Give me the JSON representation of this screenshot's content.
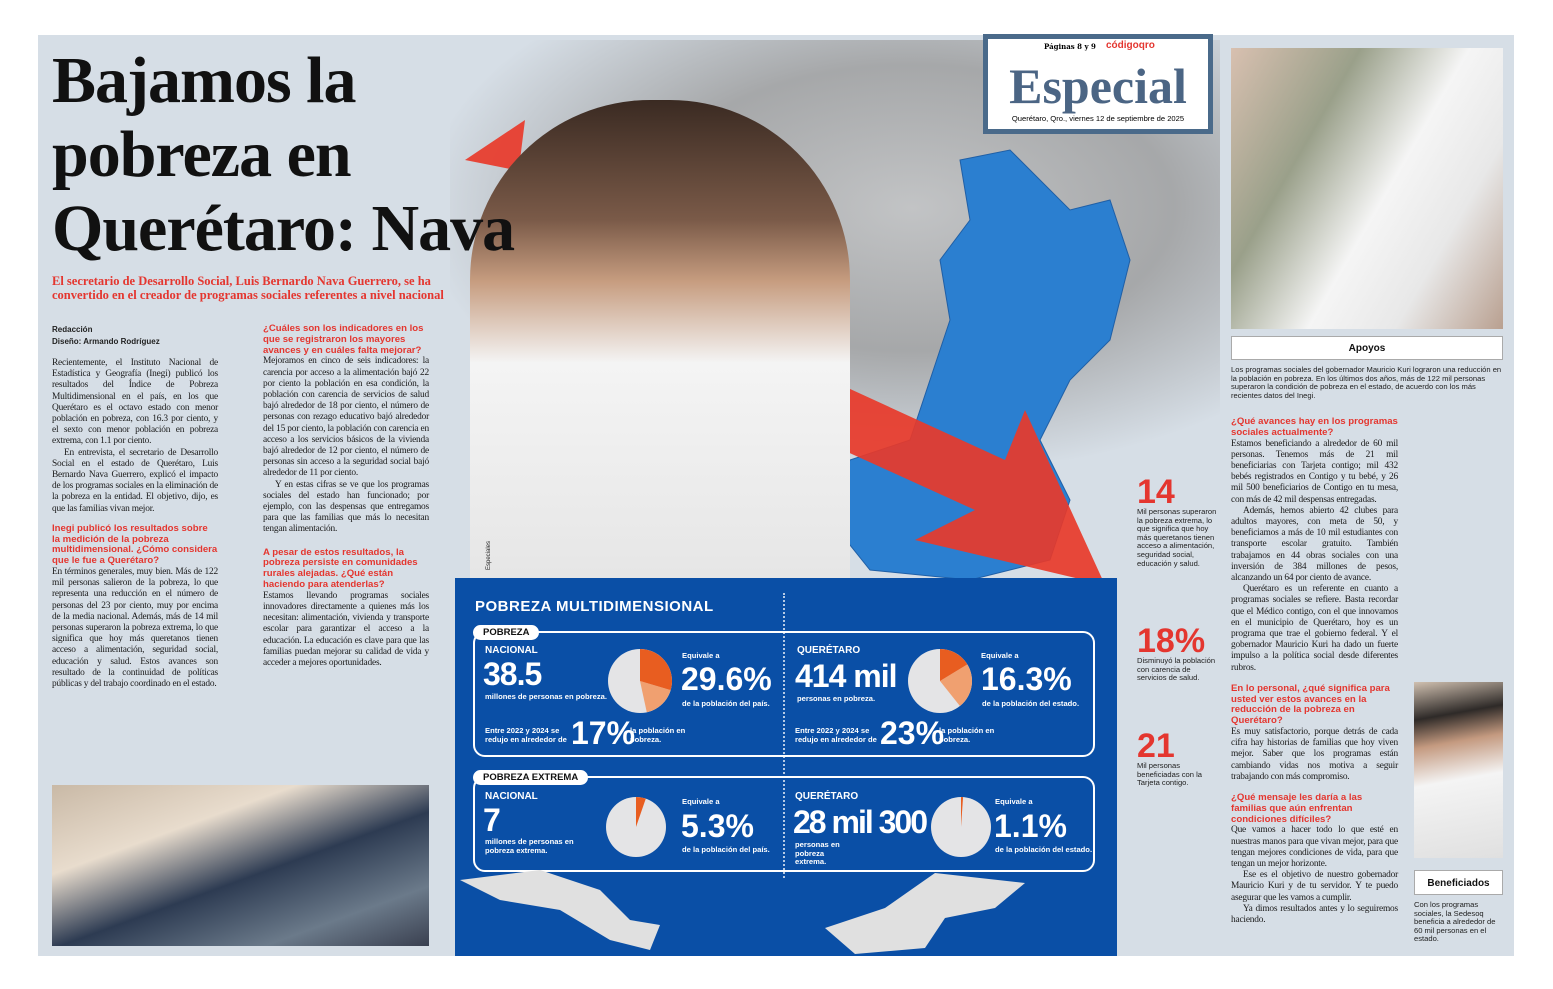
{
  "header": {
    "pages": "Páginas 8 y 9",
    "brand": "códigoqro",
    "section": "Especial",
    "dateline": "Querétaro, Qro., viernes 12 de septiembre de 2025"
  },
  "article": {
    "headline": "Bajamos la pobreza en Querétaro: Nava",
    "deck": "El secretario de Desarrollo Social, Luis Bernardo Nava Guerrero, se ha convertido en el creador de programas sociales referentes a nivel nacional",
    "byline": "Redacción",
    "design": "Diseño: Armando Rodríguez",
    "col1": [
      "Recientemente, el Instituto Nacional de Estadística y Geografía (Inegi) publicó los resultados del Índice de Pobreza Multidimensional en el país, en los que Querétaro es el octavo estado con menor población en pobreza, con 16.3 por ciento, y el sexto con menor población en pobreza extrema, con 1.1 por ciento.",
      "En entrevista, el secretario de Desarrollo Social en el estado de Querétaro, Luis Bernardo Nava Guerrero, explicó el impacto de los programas sociales en la eliminación de la pobreza en la entidad. El objetivo, dijo, es que las familias vivan mejor."
    ],
    "q1": "Inegi publicó los resultados sobre la medición de la pobreza multidimensional. ¿Cómo considera que le fue a Querétaro?",
    "a1": "En términos generales, muy bien. Más de 122 mil personas salieron de la pobreza, lo que representa una reducción en el número de personas del 23 por ciento, muy por encima de la media nacional. Además, más de 14 mil personas superaron la pobreza extrema, lo que significa que hoy más queretanos tienen acceso a alimentación, seguridad social, educación y salud. Estos avances son resultado de la continuidad de políticas públicas y del trabajo coordinado en el estado.",
    "q2": "¿Cuáles son los indicadores en los que se registraron los mayores avances y en cuáles falta mejorar?",
    "a2": [
      "Mejoramos en cinco de seis indicadores: la carencia por acceso a la alimentación bajó 22 por ciento la población en esa condición, la población con carencia de servicios de salud bajó alrededor de 18 por ciento, el número de personas con rezago educativo bajó alrededor del 15 por ciento, la población con carencia en acceso a los servicios básicos de la vivienda bajó alrededor de 12 por ciento, el número de personas sin acceso a la seguridad social bajó alrededor de 11 por ciento.",
      "Y en estas cifras se ve que los programas sociales del estado han funcionado; por ejemplo, con las despensas que entregamos para que las familias que más lo necesitan tengan alimentación."
    ],
    "q3": "A pesar de estos resultados, la pobreza persiste en comunidades rurales alejadas. ¿Qué están haciendo para atenderlas?",
    "a3": "Estamos llevando programas sociales innovadores directamente a quienes más los necesitan: alimentación, vivienda y transporte escolar para garantizar el acceso a la educación. La educación es clave para que las familias puedan mejorar su calidad de vida y acceder a mejores oportunidades.",
    "q4": "¿Qué avances hay en los programas sociales actualmente?",
    "a4": [
      "Estamos beneficiando a alrededor de 60 mil personas. Tenemos más de 21 mil beneficiarias con Tarjeta contigo; mil 432 bebés registrados en Contigo y tu bebé, y 26 mil 500 beneficiarios de Contigo en tu mesa, con más de 42 mil despensas entregadas.",
      "Además, hemos abierto 42 clubes para adultos mayores, con meta de 50, y beneficiamos a más de 10 mil estudiantes con transporte escolar gratuito. También trabajamos en 44 obras sociales con una inversión de 384 millones de pesos, alcanzando un 64 por ciento de avance.",
      "Querétaro es un referente en cuanto a programas sociales se refiere. Basta recordar que el Médico contigo, con el que innovamos en el municipio de Querétaro, hoy es un programa que trae el gobierno federal. Y el gobernador Mauricio Kuri ha dado un fuerte impulso a la política social desde diferentes rubros."
    ],
    "q5": "En lo personal, ¿qué significa para usted ver estos avances en la reducción de la pobreza en Querétaro?",
    "a5": "Es muy satisfactorio, porque detrás de cada cifra hay historias de familias que hoy viven mejor. Saber que los programas están cambiando vidas nos motiva a seguir trabajando con más compromiso.",
    "q6": "¿Qué mensaje les daría a las familias que aún enfrentan condiciones difíciles?",
    "a6": [
      "Que vamos a hacer todo lo que esté en nuestras manos para que vivan mejor, para que tengan mejores condiciones de vida, para que tengan un mejor horizonte.",
      "Ese es el objetivo de nuestro gobernador Mauricio Kuri y de tu servidor. Y te puedo asegurar que les vamos a cumplir.",
      "Ya dimos resultados antes y lo seguiremos haciendo."
    ]
  },
  "photo_credit": "Especiales",
  "sidebar": {
    "apoyos_title": "Apoyos",
    "apoyos_caption": "Los programas sociales del gobernador Mauricio Kuri lograron una reducción en la población en pobreza. En los últimos dos años, más de 122 mil personas superaron la condición de pobreza en el estado, de acuerdo con los más recientes datos del Inegi.",
    "benef_title": "Beneficiados",
    "benef_caption": "Con los programas sociales, la Sedesoq beneficia a alrededor de 60 mil personas en el estado."
  },
  "stats": [
    {
      "value": "14",
      "text": "Mil personas superaron la pobreza extrema, lo que significa que hoy más queretanos tienen acceso a alimentación, seguridad social, educación y salud."
    },
    {
      "value": "18%",
      "text": "Disminuyó la población con carencia de servicios de salud."
    },
    {
      "value": "21",
      "text": "Mil personas beneficiadas con la Tarjeta contigo."
    }
  ],
  "infographic": {
    "title": "POBREZA MULTIDIMENSIONAL",
    "pobreza": {
      "tag": "POBREZA",
      "nacional": {
        "label": "NACIONAL",
        "value": "38.5",
        "unit": "millones de personas en pobreza.",
        "equiv": "Equivale a",
        "pct": "29.6%",
        "pct_value": 29.6,
        "pct_of": "de la población del país.",
        "red_pre": "Entre 2022 y 2024 se redujo en alrededor de",
        "red": "17%",
        "red_value": 17,
        "red_post": "la población en pobreza."
      },
      "queretaro": {
        "label": "QUERÉTARO",
        "value": "414 mil",
        "unit": "personas en pobreza.",
        "equiv": "Equivale a",
        "pct": "16.3%",
        "pct_value": 16.3,
        "pct_of": "de la población del estado.",
        "red_pre": "Entre 2022 y 2024 se redujo en alrededor de",
        "red": "23%",
        "red_value": 23,
        "red_post": "la población en pobreza."
      }
    },
    "extrema": {
      "tag": "POBREZA EXTREMA",
      "nacional": {
        "label": "NACIONAL",
        "value": "7",
        "unit": "millones de personas en pobreza extrema.",
        "equiv": "Equivale a",
        "pct": "5.3%",
        "pct_value": 5.3,
        "pct_of": "de la población del país."
      },
      "queretaro": {
        "label": "QUERÉTARO",
        "value": "28 mil 300",
        "unit": "personas en pobreza extrema.",
        "equiv": "Equivale a",
        "pct": "1.1%",
        "pct_value": 1.1,
        "pct_of": "de la población del estado."
      }
    },
    "colors": {
      "panel": "#0a4fa6",
      "slice": "#e85d20",
      "slice_light": "#f0a070",
      "pie": "#e4e4e6"
    }
  }
}
